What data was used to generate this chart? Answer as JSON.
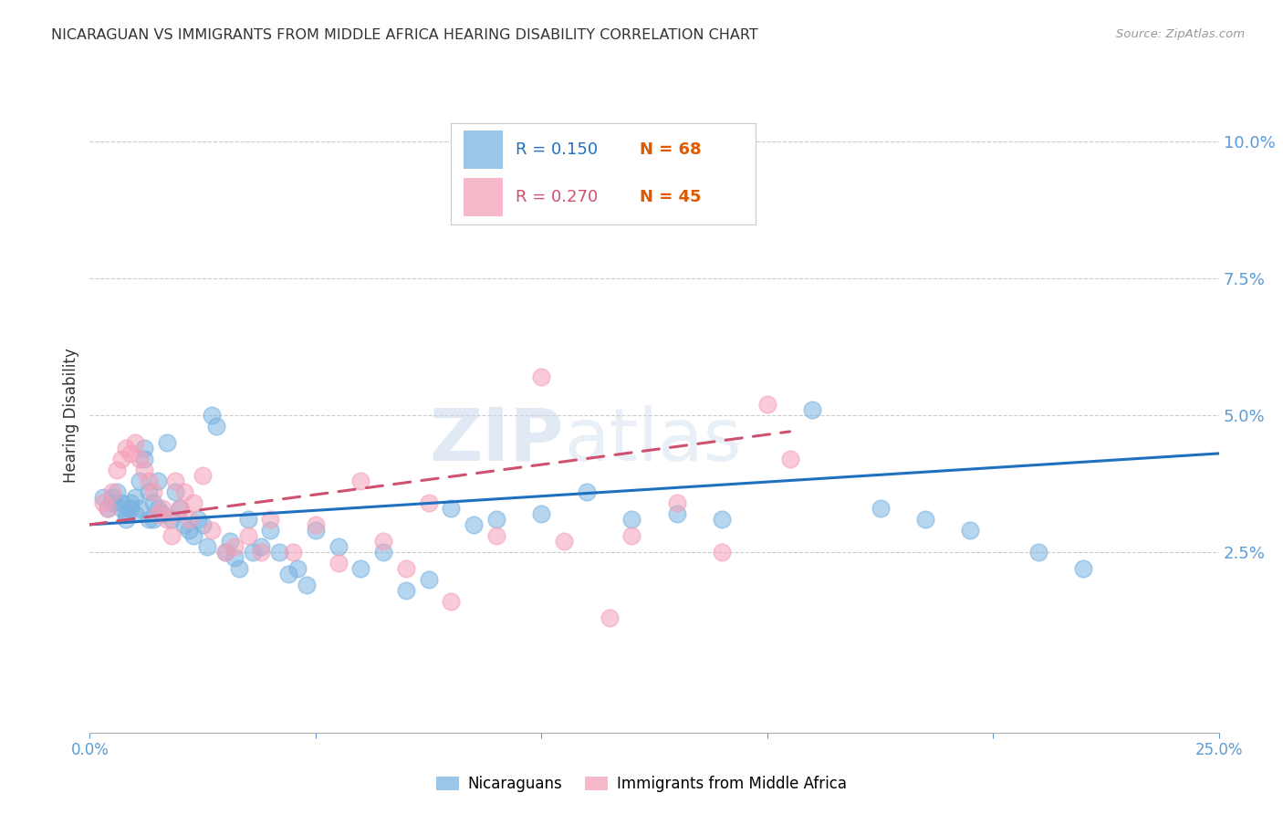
{
  "title": "NICARAGUAN VS IMMIGRANTS FROM MIDDLE AFRICA HEARING DISABILITY CORRELATION CHART",
  "source": "Source: ZipAtlas.com",
  "ylabel": "Hearing Disability",
  "yticks": [
    0.0,
    0.025,
    0.05,
    0.075,
    0.1
  ],
  "ytick_labels": [
    "",
    "2.5%",
    "5.0%",
    "7.5%",
    "10.0%"
  ],
  "xmin": 0.0,
  "xmax": 0.25,
  "ymin": -0.008,
  "ymax": 0.108,
  "blue_color": "#7ab3e0",
  "pink_color": "#f5a0b8",
  "trendline_blue": "#2070c0",
  "trendline_pink": "#d05070",
  "legend_R_blue": "0.150",
  "legend_N_blue": "68",
  "legend_R_pink": "0.270",
  "legend_N_pink": "45",
  "legend_label_blue": "Nicaraguans",
  "legend_label_pink": "Immigrants from Middle Africa",
  "blue_scatter_x": [
    0.003,
    0.004,
    0.005,
    0.005,
    0.006,
    0.007,
    0.007,
    0.008,
    0.008,
    0.009,
    0.009,
    0.01,
    0.01,
    0.011,
    0.011,
    0.012,
    0.012,
    0.013,
    0.013,
    0.014,
    0.014,
    0.015,
    0.015,
    0.016,
    0.017,
    0.018,
    0.019,
    0.02,
    0.021,
    0.022,
    0.023,
    0.024,
    0.025,
    0.026,
    0.027,
    0.028,
    0.03,
    0.031,
    0.032,
    0.033,
    0.035,
    0.036,
    0.038,
    0.04,
    0.042,
    0.044,
    0.046,
    0.048,
    0.05,
    0.055,
    0.06,
    0.065,
    0.07,
    0.075,
    0.08,
    0.085,
    0.09,
    0.1,
    0.11,
    0.12,
    0.13,
    0.14,
    0.16,
    0.175,
    0.185,
    0.195,
    0.21,
    0.22
  ],
  "blue_scatter_y": [
    0.035,
    0.033,
    0.034,
    0.035,
    0.036,
    0.034,
    0.033,
    0.032,
    0.031,
    0.034,
    0.033,
    0.035,
    0.032,
    0.038,
    0.033,
    0.044,
    0.042,
    0.036,
    0.031,
    0.034,
    0.031,
    0.038,
    0.033,
    0.032,
    0.045,
    0.031,
    0.036,
    0.033,
    0.03,
    0.029,
    0.028,
    0.031,
    0.03,
    0.026,
    0.05,
    0.048,
    0.025,
    0.027,
    0.024,
    0.022,
    0.031,
    0.025,
    0.026,
    0.029,
    0.025,
    0.021,
    0.022,
    0.019,
    0.029,
    0.026,
    0.022,
    0.025,
    0.018,
    0.02,
    0.033,
    0.03,
    0.031,
    0.032,
    0.036,
    0.031,
    0.032,
    0.031,
    0.051,
    0.033,
    0.031,
    0.029,
    0.025,
    0.022
  ],
  "pink_scatter_x": [
    0.003,
    0.004,
    0.005,
    0.006,
    0.007,
    0.008,
    0.009,
    0.01,
    0.011,
    0.012,
    0.013,
    0.014,
    0.015,
    0.016,
    0.017,
    0.018,
    0.019,
    0.02,
    0.021,
    0.022,
    0.023,
    0.025,
    0.027,
    0.03,
    0.032,
    0.035,
    0.038,
    0.04,
    0.045,
    0.05,
    0.055,
    0.06,
    0.065,
    0.07,
    0.075,
    0.08,
    0.09,
    0.1,
    0.105,
    0.115,
    0.12,
    0.13,
    0.14,
    0.15,
    0.155
  ],
  "pink_scatter_y": [
    0.034,
    0.033,
    0.036,
    0.04,
    0.042,
    0.044,
    0.043,
    0.045,
    0.042,
    0.04,
    0.038,
    0.036,
    0.032,
    0.033,
    0.031,
    0.028,
    0.038,
    0.033,
    0.036,
    0.031,
    0.034,
    0.039,
    0.029,
    0.025,
    0.026,
    0.028,
    0.025,
    0.031,
    0.025,
    0.03,
    0.023,
    0.038,
    0.027,
    0.022,
    0.034,
    0.016,
    0.028,
    0.057,
    0.027,
    0.013,
    0.028,
    0.034,
    0.025,
    0.052,
    0.042
  ],
  "blue_trend_x": [
    0.0,
    0.25
  ],
  "blue_trend_y": [
    0.03,
    0.043
  ],
  "pink_trend_x": [
    0.0,
    0.155
  ],
  "pink_trend_y": [
    0.03,
    0.047
  ],
  "watermark_line1": "ZIP",
  "watermark_line2": "atlas",
  "title_color": "#333333",
  "axis_label_color": "#333333",
  "tick_color": "#5b9bd5",
  "grid_color": "#cccccc",
  "N_color": "#e05800",
  "legend_border_color": "#cccccc",
  "bottom_spine_color": "#aaaaaa"
}
